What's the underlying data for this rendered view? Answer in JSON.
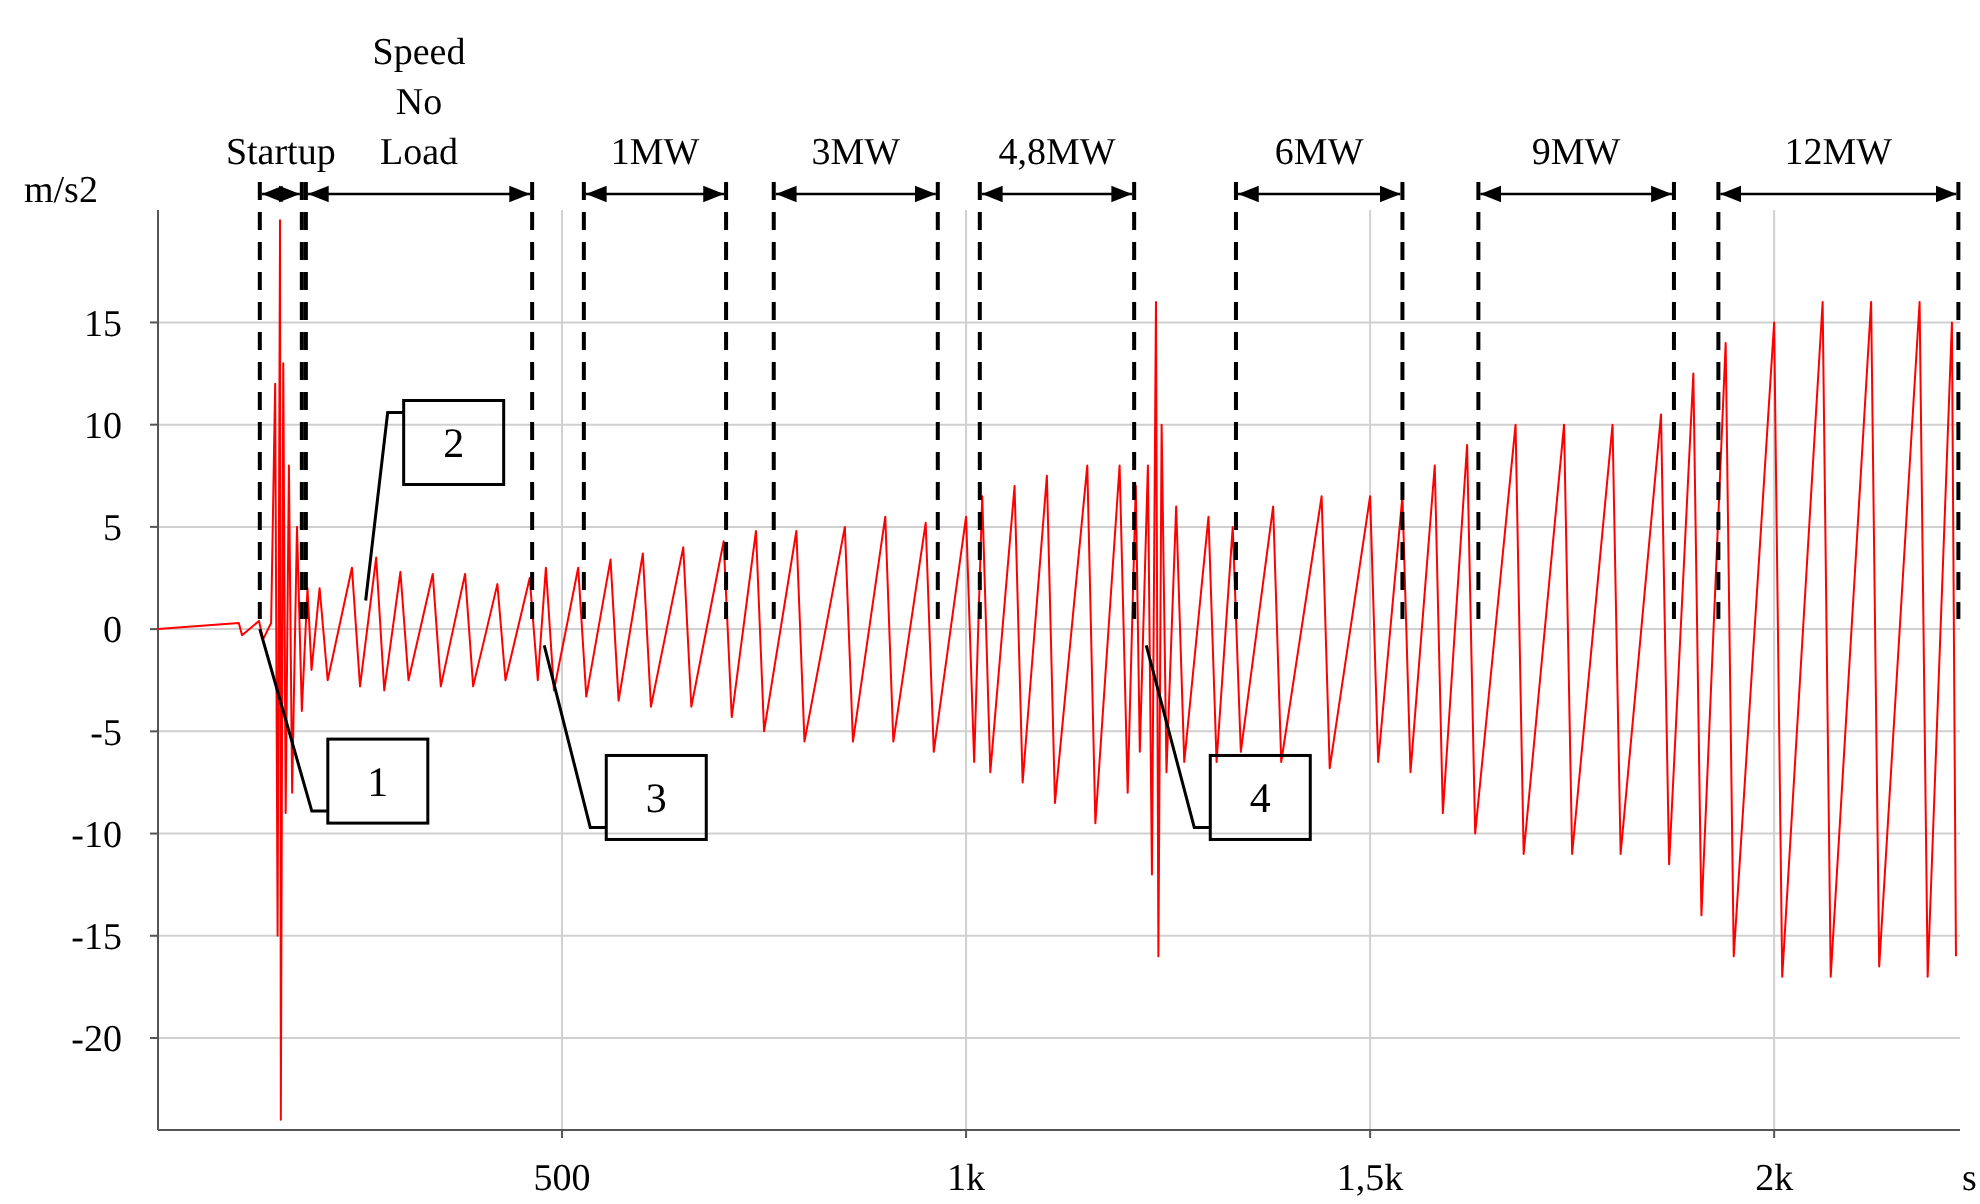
{
  "chart_data": {
    "type": "line",
    "ylabel": "m/s2",
    "xlabel": "s",
    "xlim": [
      0,
      2230
    ],
    "xticks": [
      {
        "value": 500,
        "label": "500"
      },
      {
        "value": 1000,
        "label": "1k"
      },
      {
        "value": 1500,
        "label": "1,5k"
      },
      {
        "value": 2000,
        "label": "2k"
      }
    ],
    "ylim": [
      -24.5,
      20.5
    ],
    "yticks": [
      -20,
      -15,
      -10,
      -5,
      0,
      5,
      10,
      15
    ],
    "grid": true,
    "marker": "none",
    "line_style": "solid",
    "series": [
      {
        "color": "#ff0000",
        "x": [
          0,
          100,
          104,
          125,
          130,
          140,
          145,
          148,
          151,
          152,
          155,
          158,
          162,
          166,
          172,
          178,
          185,
          190,
          200,
          210,
          240,
          250,
          270,
          280,
          300,
          310,
          340,
          350,
          380,
          390,
          420,
          430,
          460,
          470,
          480,
          490,
          520,
          530,
          560,
          570,
          600,
          610,
          650,
          660,
          700,
          710,
          740,
          750,
          790,
          800,
          850,
          860,
          900,
          910,
          950,
          960,
          1000,
          1010,
          1020,
          1030,
          1060,
          1070,
          1100,
          1110,
          1150,
          1160,
          1190,
          1200,
          1210,
          1215,
          1225,
          1230,
          1235,
          1238,
          1242,
          1248,
          1260,
          1270,
          1300,
          1310,
          1330,
          1340,
          1380,
          1390,
          1440,
          1450,
          1500,
          1510,
          1540,
          1550,
          1580,
          1590,
          1620,
          1630,
          1680,
          1690,
          1740,
          1750,
          1800,
          1810,
          1860,
          1870,
          1900,
          1910,
          1940,
          1950,
          2000,
          2010,
          2060,
          2070,
          2120,
          2130,
          2180,
          2190,
          2220,
          2225
        ],
        "values": [
          0,
          0.3,
          -0.3,
          0.4,
          -0.5,
          0.3,
          12,
          -15,
          20,
          -24,
          13,
          -9,
          8,
          -8,
          5,
          -4,
          2,
          -2,
          2,
          -2.5,
          3,
          -2.8,
          3.5,
          -3,
          2.8,
          -2.5,
          2.7,
          -2.8,
          2.7,
          -2.8,
          2.2,
          -2.5,
          2.5,
          -2.5,
          3,
          -3,
          3,
          -3.3,
          3.4,
          -3.5,
          3.7,
          -3.8,
          4,
          -3.8,
          4.3,
          -4.3,
          4.8,
          -5,
          4.8,
          -5.5,
          5,
          -5.5,
          5.5,
          -5.5,
          5.2,
          -6,
          5.5,
          -6.5,
          6.5,
          -7,
          7,
          -7.5,
          7.5,
          -8.5,
          8,
          -9.5,
          8,
          -8,
          7,
          -6,
          8,
          -12,
          16,
          -16,
          10,
          -7,
          6,
          -6.5,
          5.5,
          -6.5,
          5,
          -6,
          6,
          -6.5,
          6.5,
          -6.8,
          6.5,
          -6.5,
          6.5,
          -7,
          8,
          -9,
          9,
          -10,
          10,
          -11,
          10,
          -11,
          10,
          -11,
          10.5,
          -11.5,
          12.5,
          -14,
          14,
          -16,
          15,
          -17,
          16,
          -17,
          16,
          -16.5,
          16,
          -17,
          15,
          -16
        ]
      }
    ],
    "ref_lines": [
      {
        "axis": "x",
        "value": 126,
        "line_style": "dashed",
        "color": "#000000",
        "label": "Startup"
      },
      {
        "axis": "x",
        "value": 178,
        "line_style": "dashed",
        "color": "#000000"
      },
      {
        "axis": "x",
        "value": 183,
        "line_style": "dashed",
        "color": "#000000",
        "label": "Speed\nNo\nLoad"
      },
      {
        "axis": "x",
        "value": 463,
        "line_style": "dashed",
        "color": "#000000"
      },
      {
        "axis": "x",
        "value": 527,
        "line_style": "dashed",
        "color": "#000000",
        "label": "1MW"
      },
      {
        "axis": "x",
        "value": 703,
        "line_style": "dashed",
        "color": "#000000"
      },
      {
        "axis": "x",
        "value": 762,
        "line_style": "dashed",
        "color": "#000000",
        "label": "3MW"
      },
      {
        "axis": "x",
        "value": 965,
        "line_style": "dashed",
        "color": "#000000"
      },
      {
        "axis": "x",
        "value": 1017,
        "line_style": "dashed",
        "color": "#000000",
        "label": "4,8MW"
      },
      {
        "axis": "x",
        "value": 1208,
        "line_style": "dashed",
        "color": "#000000"
      },
      {
        "axis": "x",
        "value": 1334,
        "line_style": "dashed",
        "color": "#000000",
        "label": "6MW"
      },
      {
        "axis": "x",
        "value": 1540,
        "line_style": "dashed",
        "color": "#000000"
      },
      {
        "axis": "x",
        "value": 1634,
        "line_style": "dashed",
        "color": "#000000",
        "label": "9MW"
      },
      {
        "axis": "x",
        "value": 1876,
        "line_style": "dashed",
        "color": "#000000"
      },
      {
        "axis": "x",
        "value": 1931,
        "line_style": "dashed",
        "color": "#000000",
        "label": "12MW"
      },
      {
        "axis": "x",
        "value": 2228,
        "line_style": "dashed",
        "color": "#000000"
      }
    ],
    "annotations": [
      {
        "text": "1",
        "x": 126,
        "y": 0
      },
      {
        "text": "2",
        "x": 257,
        "y": 1.4
      },
      {
        "text": "3",
        "x": 478,
        "y": -0.8
      },
      {
        "text": "4",
        "x": 1223,
        "y": -0.8
      }
    ]
  }
}
